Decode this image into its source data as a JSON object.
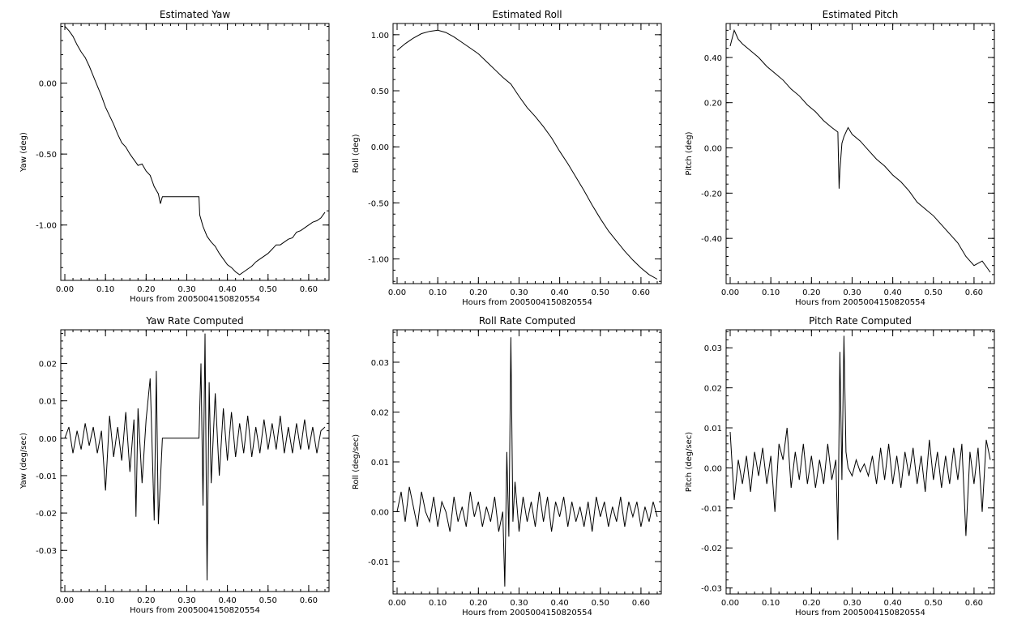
{
  "chart_data": [
    {
      "type": "line",
      "title": "Estimated Yaw",
      "xlabel": "Hours from 2005004150820554",
      "ylabel": "Yaw (deg)",
      "xlim": [
        -0.01,
        0.65
      ],
      "ylim": [
        -1.39,
        0.42
      ],
      "xticks": [
        0.0,
        0.1,
        0.2,
        0.3,
        0.4,
        0.5,
        0.6
      ],
      "xticklabels": [
        "0.00",
        "0.10",
        "0.20",
        "0.30",
        "0.40",
        "0.50",
        "0.60"
      ],
      "yticks": [
        0.0,
        -0.5,
        -1.0
      ],
      "yticklabels": [
        "0.00",
        "-0.50",
        "-1.00"
      ],
      "series": [
        {
          "x": [
            0.0,
            0.01,
            0.02,
            0.03,
            0.04,
            0.05,
            0.06,
            0.07,
            0.08,
            0.09,
            0.1,
            0.11,
            0.12,
            0.13,
            0.14,
            0.15,
            0.16,
            0.17,
            0.18,
            0.19,
            0.2,
            0.21,
            0.22,
            0.23,
            0.235,
            0.24,
            0.33,
            0.332,
            0.34,
            0.35,
            0.36,
            0.37,
            0.38,
            0.39,
            0.4,
            0.41,
            0.42,
            0.43,
            0.44,
            0.45,
            0.46,
            0.47,
            0.48,
            0.49,
            0.5,
            0.51,
            0.52,
            0.53,
            0.54,
            0.55,
            0.56,
            0.57,
            0.58,
            0.59,
            0.6,
            0.61,
            0.62,
            0.63,
            0.64
          ],
          "y": [
            0.4,
            0.37,
            0.33,
            0.27,
            0.22,
            0.18,
            0.12,
            0.05,
            -0.02,
            -0.09,
            -0.17,
            -0.23,
            -0.29,
            -0.36,
            -0.42,
            -0.45,
            -0.5,
            -0.54,
            -0.58,
            -0.57,
            -0.62,
            -0.65,
            -0.73,
            -0.78,
            -0.85,
            -0.8,
            -0.8,
            -0.93,
            -1.01,
            -1.08,
            -1.12,
            -1.15,
            -1.2,
            -1.24,
            -1.28,
            -1.3,
            -1.33,
            -1.35,
            -1.33,
            -1.31,
            -1.29,
            -1.26,
            -1.24,
            -1.22,
            -1.2,
            -1.17,
            -1.14,
            -1.14,
            -1.12,
            -1.1,
            -1.09,
            -1.05,
            -1.04,
            -1.02,
            -1.0,
            -0.98,
            -0.97,
            -0.95,
            -0.91
          ]
        }
      ]
    },
    {
      "type": "line",
      "title": "Estimated Roll",
      "xlabel": "Hours from 2005004150820554",
      "ylabel": "Roll (deg)",
      "xlim": [
        -0.01,
        0.65
      ],
      "ylim": [
        -1.22,
        1.1
      ],
      "xticks": [
        0.0,
        0.1,
        0.2,
        0.3,
        0.4,
        0.5,
        0.6
      ],
      "xticklabels": [
        "0.00",
        "0.10",
        "0.20",
        "0.30",
        "0.40",
        "0.50",
        "0.60"
      ],
      "yticks": [
        1.0,
        0.5,
        0.0,
        -0.5,
        -1.0
      ],
      "yticklabels": [
        "1.00",
        "0.50",
        "0.00",
        "-0.50",
        "-1.00"
      ],
      "series": [
        {
          "x": [
            0.0,
            0.02,
            0.04,
            0.06,
            0.08,
            0.1,
            0.12,
            0.14,
            0.16,
            0.18,
            0.2,
            0.22,
            0.24,
            0.26,
            0.28,
            0.3,
            0.32,
            0.34,
            0.36,
            0.38,
            0.4,
            0.42,
            0.44,
            0.46,
            0.48,
            0.5,
            0.52,
            0.54,
            0.56,
            0.58,
            0.6,
            0.62,
            0.64
          ],
          "y": [
            0.86,
            0.92,
            0.97,
            1.01,
            1.03,
            1.04,
            1.02,
            0.98,
            0.93,
            0.88,
            0.83,
            0.76,
            0.69,
            0.62,
            0.56,
            0.45,
            0.35,
            0.27,
            0.18,
            0.08,
            -0.04,
            -0.15,
            -0.27,
            -0.39,
            -0.52,
            -0.64,
            -0.75,
            -0.84,
            -0.93,
            -1.01,
            -1.08,
            -1.14,
            -1.18
          ]
        }
      ]
    },
    {
      "type": "line",
      "title": "Estimated Pitch",
      "xlabel": "Hours from 2005004150820554",
      "ylabel": "Pitch (deg)",
      "xlim": [
        -0.01,
        0.65
      ],
      "ylim": [
        -0.6,
        0.55
      ],
      "xticks": [
        0.0,
        0.1,
        0.2,
        0.3,
        0.4,
        0.5,
        0.6
      ],
      "xticklabels": [
        "0.00",
        "0.10",
        "0.20",
        "0.30",
        "0.40",
        "0.50",
        "0.60"
      ],
      "yticks": [
        0.4,
        0.2,
        0.0,
        -0.2,
        -0.4
      ],
      "yticklabels": [
        "0.40",
        "0.20",
        "0.00",
        "-0.20",
        "-0.40"
      ],
      "series": [
        {
          "x": [
            0.0,
            0.01,
            0.02,
            0.03,
            0.05,
            0.07,
            0.09,
            0.11,
            0.13,
            0.15,
            0.17,
            0.19,
            0.21,
            0.23,
            0.25,
            0.265,
            0.268,
            0.27,
            0.275,
            0.28,
            0.29,
            0.3,
            0.32,
            0.34,
            0.36,
            0.38,
            0.4,
            0.42,
            0.44,
            0.46,
            0.48,
            0.5,
            0.52,
            0.54,
            0.56,
            0.58,
            0.59,
            0.6,
            0.62,
            0.64
          ],
          "y": [
            0.45,
            0.52,
            0.48,
            0.46,
            0.43,
            0.4,
            0.36,
            0.33,
            0.3,
            0.26,
            0.23,
            0.19,
            0.16,
            0.12,
            0.09,
            0.07,
            -0.18,
            -0.1,
            0.02,
            0.05,
            0.09,
            0.06,
            0.03,
            -0.01,
            -0.05,
            -0.08,
            -0.12,
            -0.15,
            -0.19,
            -0.24,
            -0.27,
            -0.3,
            -0.34,
            -0.38,
            -0.42,
            -0.48,
            -0.5,
            -0.52,
            -0.5,
            -0.55
          ]
        }
      ]
    },
    {
      "type": "line",
      "title": "Yaw Rate Computed",
      "xlabel": "Hours from 2005004150820554",
      "ylabel": "Yaw (deg/sec)",
      "xlim": [
        -0.01,
        0.65
      ],
      "ylim": [
        -0.041,
        0.029
      ],
      "xticks": [
        0.0,
        0.1,
        0.2,
        0.3,
        0.4,
        0.5,
        0.6
      ],
      "xticklabels": [
        "0.00",
        "0.10",
        "0.20",
        "0.30",
        "0.40",
        "0.50",
        "0.60"
      ],
      "yticks": [
        0.02,
        0.01,
        0.0,
        -0.01,
        -0.02,
        -0.03
      ],
      "yticklabels": [
        "0.02",
        "0.01",
        "0.00",
        "-0.01",
        "-0.02",
        "-0.03"
      ],
      "series": [
        {
          "x": [
            0.0,
            0.01,
            0.02,
            0.03,
            0.04,
            0.05,
            0.06,
            0.07,
            0.08,
            0.09,
            0.1,
            0.11,
            0.12,
            0.13,
            0.14,
            0.15,
            0.16,
            0.17,
            0.175,
            0.18,
            0.19,
            0.2,
            0.21,
            0.22,
            0.225,
            0.23,
            0.24,
            0.33,
            0.335,
            0.34,
            0.345,
            0.35,
            0.355,
            0.36,
            0.37,
            0.38,
            0.39,
            0.4,
            0.41,
            0.42,
            0.43,
            0.44,
            0.45,
            0.46,
            0.47,
            0.48,
            0.49,
            0.5,
            0.51,
            0.52,
            0.53,
            0.54,
            0.55,
            0.56,
            0.57,
            0.58,
            0.59,
            0.6,
            0.61,
            0.62,
            0.63,
            0.64
          ],
          "y": [
            0.0,
            0.003,
            -0.004,
            0.002,
            -0.003,
            0.004,
            -0.002,
            0.003,
            -0.004,
            0.002,
            -0.014,
            0.006,
            -0.005,
            0.003,
            -0.006,
            0.007,
            -0.009,
            0.005,
            -0.021,
            0.008,
            -0.012,
            0.005,
            0.016,
            -0.022,
            0.018,
            -0.023,
            0.0,
            0.0,
            0.02,
            -0.018,
            0.028,
            -0.038,
            0.015,
            -0.012,
            0.012,
            -0.01,
            0.008,
            -0.006,
            0.007,
            -0.005,
            0.004,
            -0.004,
            0.006,
            -0.005,
            0.003,
            -0.004,
            0.005,
            -0.003,
            0.004,
            -0.003,
            0.006,
            -0.004,
            0.003,
            -0.004,
            0.004,
            -0.003,
            0.005,
            -0.003,
            0.003,
            -0.004,
            0.002,
            0.003
          ]
        }
      ]
    },
    {
      "type": "line",
      "title": "Roll Rate Computed",
      "xlabel": "Hours from 2005004150820554",
      "ylabel": "Roll (deg/sec)",
      "xlim": [
        -0.01,
        0.65
      ],
      "ylim": [
        -0.0165,
        0.0365
      ],
      "xticks": [
        0.0,
        0.1,
        0.2,
        0.3,
        0.4,
        0.5,
        0.6
      ],
      "xticklabels": [
        "0.00",
        "0.10",
        "0.20",
        "0.30",
        "0.40",
        "0.50",
        "0.60"
      ],
      "yticks": [
        0.03,
        0.02,
        0.01,
        0.0,
        -0.01
      ],
      "yticklabels": [
        "0.03",
        "0.02",
        "0.01",
        "0.00",
        "-0.01"
      ],
      "series": [
        {
          "x": [
            0.0,
            0.01,
            0.02,
            0.03,
            0.04,
            0.05,
            0.06,
            0.07,
            0.08,
            0.09,
            0.1,
            0.11,
            0.12,
            0.13,
            0.14,
            0.15,
            0.16,
            0.17,
            0.18,
            0.19,
            0.2,
            0.21,
            0.22,
            0.23,
            0.24,
            0.25,
            0.26,
            0.265,
            0.27,
            0.275,
            0.28,
            0.285,
            0.29,
            0.3,
            0.31,
            0.32,
            0.33,
            0.34,
            0.35,
            0.36,
            0.37,
            0.38,
            0.39,
            0.4,
            0.41,
            0.42,
            0.43,
            0.44,
            0.45,
            0.46,
            0.47,
            0.48,
            0.49,
            0.5,
            0.51,
            0.52,
            0.53,
            0.54,
            0.55,
            0.56,
            0.57,
            0.58,
            0.59,
            0.6,
            0.61,
            0.62,
            0.63,
            0.64
          ],
          "y": [
            0.0,
            0.004,
            -0.002,
            0.005,
            0.001,
            -0.003,
            0.004,
            0.0,
            -0.002,
            0.003,
            -0.003,
            0.002,
            0.0,
            -0.004,
            0.003,
            -0.002,
            0.001,
            -0.003,
            0.004,
            -0.001,
            0.002,
            -0.003,
            0.001,
            -0.002,
            0.003,
            -0.004,
            0.0,
            -0.015,
            0.012,
            -0.005,
            0.035,
            -0.002,
            0.006,
            -0.004,
            0.003,
            -0.002,
            0.002,
            -0.003,
            0.004,
            -0.002,
            0.003,
            -0.004,
            0.002,
            -0.001,
            0.003,
            -0.003,
            0.002,
            -0.002,
            0.001,
            -0.003,
            0.002,
            -0.004,
            0.003,
            -0.001,
            0.002,
            -0.003,
            0.001,
            -0.002,
            0.003,
            -0.003,
            0.002,
            -0.001,
            0.002,
            -0.003,
            0.001,
            -0.002,
            0.002,
            -0.001
          ]
        }
      ]
    },
    {
      "type": "line",
      "title": "Pitch Rate Computed",
      "xlabel": "Hours from 2005004150820554",
      "ylabel": "Pitch (deg/sec)",
      "xlim": [
        -0.01,
        0.65
      ],
      "ylim": [
        -0.0315,
        0.0345
      ],
      "xticks": [
        0.0,
        0.1,
        0.2,
        0.3,
        0.4,
        0.5,
        0.6
      ],
      "xticklabels": [
        "0.00",
        "0.10",
        "0.20",
        "0.30",
        "0.40",
        "0.50",
        "0.60"
      ],
      "yticks": [
        0.03,
        0.02,
        0.01,
        0.0,
        -0.01,
        -0.02,
        -0.03
      ],
      "yticklabels": [
        "0.03",
        "0.02",
        "0.01",
        "0.00",
        "-0.01",
        "-0.02",
        "-0.03"
      ],
      "series": [
        {
          "x": [
            0.0,
            0.01,
            0.02,
            0.03,
            0.04,
            0.05,
            0.06,
            0.07,
            0.08,
            0.09,
            0.1,
            0.11,
            0.12,
            0.13,
            0.14,
            0.15,
            0.16,
            0.17,
            0.18,
            0.19,
            0.2,
            0.21,
            0.22,
            0.23,
            0.24,
            0.25,
            0.26,
            0.265,
            0.27,
            0.275,
            0.28,
            0.285,
            0.29,
            0.3,
            0.31,
            0.32,
            0.33,
            0.34,
            0.35,
            0.36,
            0.37,
            0.38,
            0.39,
            0.4,
            0.41,
            0.42,
            0.43,
            0.44,
            0.45,
            0.46,
            0.47,
            0.48,
            0.49,
            0.5,
            0.51,
            0.52,
            0.53,
            0.54,
            0.55,
            0.56,
            0.57,
            0.58,
            0.59,
            0.6,
            0.61,
            0.62,
            0.63,
            0.64
          ],
          "y": [
            0.009,
            -0.008,
            0.002,
            -0.004,
            0.003,
            -0.006,
            0.004,
            -0.002,
            0.005,
            -0.004,
            0.003,
            -0.011,
            0.006,
            0.002,
            0.01,
            -0.005,
            0.004,
            -0.003,
            0.006,
            -0.004,
            0.003,
            -0.005,
            0.002,
            -0.004,
            0.006,
            -0.003,
            0.002,
            -0.018,
            0.029,
            -0.003,
            0.033,
            0.004,
            0.0,
            -0.002,
            0.002,
            -0.001,
            0.001,
            -0.002,
            0.003,
            -0.004,
            0.005,
            -0.003,
            0.006,
            -0.004,
            0.003,
            -0.005,
            0.004,
            -0.002,
            0.005,
            -0.004,
            0.003,
            -0.006,
            0.007,
            -0.003,
            0.004,
            -0.005,
            0.003,
            -0.004,
            0.005,
            -0.003,
            0.006,
            -0.017,
            0.004,
            -0.004,
            0.005,
            -0.011,
            0.007,
            0.002
          ]
        }
      ]
    }
  ]
}
